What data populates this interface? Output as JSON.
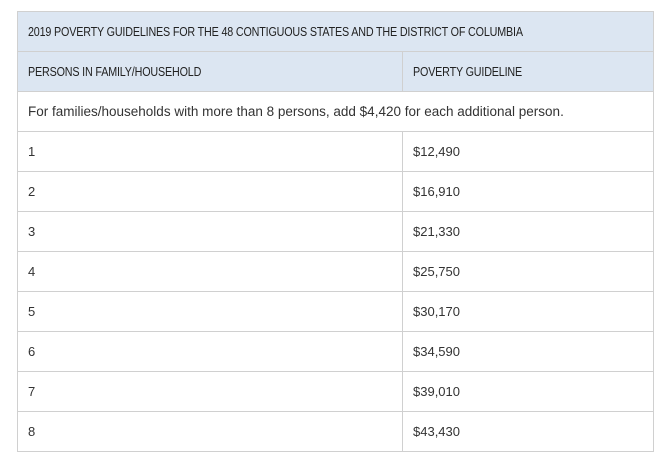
{
  "table": {
    "title": "2019 POVERTY GUIDELINES FOR THE 48 CONTIGUOUS STATES AND THE DISTRICT OF COLUMBIA",
    "headers": {
      "persons": "PERSONS IN FAMILY/HOUSEHOLD",
      "guideline": "POVERTY GUIDELINE"
    },
    "note": "For families/households with more than 8 persons, add $4,420 for each additional person.",
    "rows": [
      {
        "persons": "1",
        "guideline": "$12,490"
      },
      {
        "persons": "2",
        "guideline": "$16,910"
      },
      {
        "persons": "3",
        "guideline": "$21,330"
      },
      {
        "persons": "4",
        "guideline": "$25,750"
      },
      {
        "persons": "5",
        "guideline": "$30,170"
      },
      {
        "persons": "6",
        "guideline": "$34,590"
      },
      {
        "persons": "7",
        "guideline": "$39,010"
      },
      {
        "persons": "8",
        "guideline": "$43,430"
      }
    ],
    "colors": {
      "header_background": "#dce6f2",
      "border": "#d0d0d0"
    }
  }
}
